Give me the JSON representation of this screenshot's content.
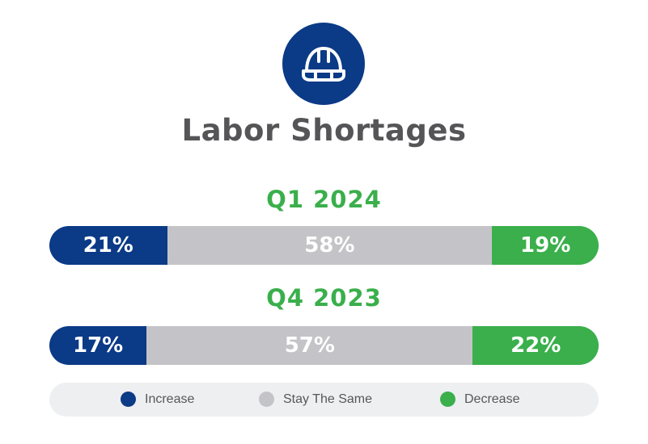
{
  "title": "Labor Shortages",
  "icon": "hard-hat-icon",
  "colors": {
    "increase": "#0b3a86",
    "stay_the_same": "#c4c4c8",
    "decrease": "#3aaf4b",
    "period_label": "#3aaf4b",
    "title": "#555558",
    "icon_bg": "#0b3a86"
  },
  "legend": {
    "increase": "Increase",
    "stay_the_same": "Stay The Same",
    "decrease": "Decrease"
  },
  "chart_data": {
    "type": "bar",
    "orientation": "horizontal-stacked-100",
    "title": "Labor Shortages",
    "categories": [
      "Q1 2024",
      "Q4 2023"
    ],
    "series": [
      {
        "name": "Increase",
        "values": [
          21,
          17
        ],
        "labels": [
          "21%",
          "17%"
        ]
      },
      {
        "name": "Stay The Same",
        "values": [
          58,
          57
        ],
        "labels": [
          "58%",
          "57%"
        ]
      },
      {
        "name": "Decrease",
        "values": [
          19,
          22
        ],
        "labels": [
          "19%",
          "22%"
        ]
      }
    ],
    "legend_position": "bottom"
  }
}
